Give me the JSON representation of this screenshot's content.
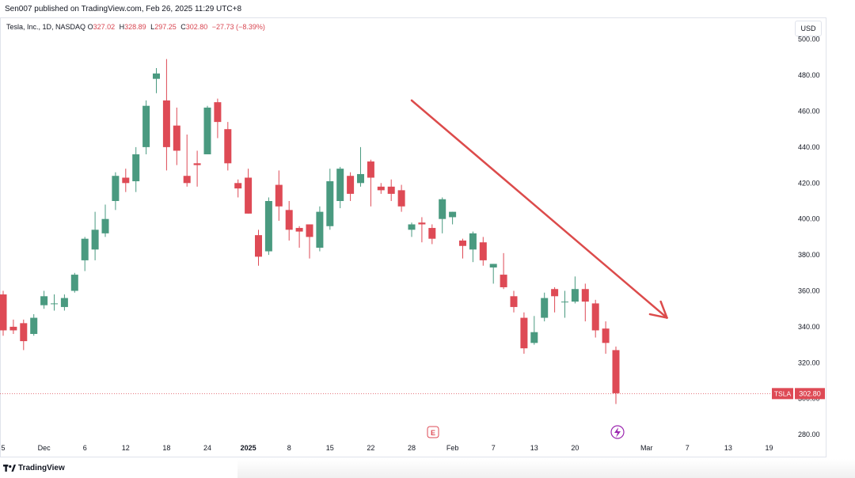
{
  "published_text": "Sen007 published on TradingView.com, Feb 26, 2025 11:29 UTC+8",
  "legend": {
    "symbol_text": "Tesla, Inc., 1D, NASDAQ",
    "open_label": "O",
    "open": "327.02",
    "high_label": "H",
    "high": "328.89",
    "low_label": "L",
    "low": "297.25",
    "close_label": "C",
    "close": "302.80",
    "change": "−27.73 (−8.39%)"
  },
  "currency": "USD",
  "price_tag": {
    "ticker": "TSLA",
    "price": "302.80",
    "value": 302.8
  },
  "footer_brand": "TradingView",
  "event_marker_e": "E",
  "colors": {
    "up": "#4a9a80",
    "down": "#de4a55",
    "arrow": "#dc4b4b",
    "axis_text": "#131722"
  },
  "chart_data": {
    "type": "candlestick",
    "title": "",
    "xlabel": "",
    "ylabel": "",
    "ylim": [
      270,
      505
    ],
    "yticks": [
      280,
      300,
      320,
      340,
      360,
      380,
      400,
      420,
      440,
      460,
      480,
      500
    ],
    "ytick_labels": [
      "280.00",
      "300.00",
      "320.00",
      "340.00",
      "360.00",
      "380.00",
      "400.00",
      "420.00",
      "440.00",
      "460.00",
      "480.00",
      "500.00"
    ],
    "grid": false,
    "xticks": [
      {
        "label": "5",
        "candle": 0
      },
      {
        "label": "Dec",
        "candle": 4
      },
      {
        "label": "6",
        "candle": 8
      },
      {
        "label": "12",
        "candle": 12
      },
      {
        "label": "18",
        "candle": 16
      },
      {
        "label": "24",
        "candle": 20
      },
      {
        "label": "2025",
        "candle": 24
      },
      {
        "label": "8",
        "candle": 28
      },
      {
        "label": "15",
        "candle": 32
      },
      {
        "label": "22",
        "candle": 36
      },
      {
        "label": "28",
        "candle": 40
      },
      {
        "label": "Feb",
        "candle": 44
      },
      {
        "label": "7",
        "candle": 48
      },
      {
        "label": "13",
        "candle": 52
      },
      {
        "label": "20",
        "candle": 56
      },
      {
        "label": "Mar",
        "candle": 63
      },
      {
        "label": "7",
        "candle": 67
      },
      {
        "label": "13",
        "candle": 71
      },
      {
        "label": "19",
        "candle": 75
      }
    ],
    "ohlc": [
      [
        358,
        360,
        335,
        338
      ],
      [
        340,
        344,
        336,
        338
      ],
      [
        342,
        344,
        327,
        332
      ],
      [
        336,
        347,
        335,
        345
      ],
      [
        352,
        360,
        350,
        357
      ],
      [
        353,
        358,
        349,
        353
      ],
      [
        351,
        358,
        349,
        356
      ],
      [
        360,
        370,
        359,
        369
      ],
      [
        377,
        390,
        371,
        389
      ],
      [
        383,
        404,
        377,
        394
      ],
      [
        392,
        408,
        390,
        400
      ],
      [
        410,
        426,
        405,
        424
      ],
      [
        423,
        428,
        415,
        420
      ],
      [
        421,
        440,
        415,
        436
      ],
      [
        440,
        466,
        436,
        463
      ],
      [
        478,
        484,
        470,
        481
      ],
      [
        466,
        489,
        427,
        440
      ],
      [
        452,
        462,
        430,
        438
      ],
      [
        424,
        447,
        418,
        420
      ],
      [
        431,
        438,
        418,
        430
      ],
      [
        436,
        463,
        436,
        462
      ],
      [
        465,
        467,
        445,
        454
      ],
      [
        450,
        454,
        427,
        431
      ],
      [
        420,
        422,
        412,
        417
      ],
      [
        423,
        428,
        403,
        403
      ],
      [
        391,
        394,
        374,
        379
      ],
      [
        382,
        412,
        380,
        410
      ],
      [
        419,
        427,
        399,
        407
      ],
      [
        405,
        410,
        388,
        394
      ],
      [
        395,
        396,
        384,
        393
      ],
      [
        397,
        397,
        378,
        390
      ],
      [
        384,
        407,
        382,
        404
      ],
      [
        396,
        428,
        394,
        421
      ],
      [
        410,
        429,
        406,
        428
      ],
      [
        424,
        426,
        410,
        414
      ],
      [
        420,
        440,
        418,
        425
      ],
      [
        432,
        433,
        407,
        423
      ],
      [
        418,
        420,
        414,
        416
      ],
      [
        418,
        422,
        410,
        414
      ],
      [
        416,
        419,
        404,
        407
      ],
      [
        394,
        398,
        390,
        397
      ],
      [
        398,
        401,
        387,
        397
      ],
      [
        395,
        397,
        386,
        389
      ],
      [
        400,
        412,
        392,
        411
      ],
      [
        401,
        404,
        397,
        404
      ],
      [
        388,
        389,
        378,
        385
      ],
      [
        383,
        393,
        376,
        392
      ],
      [
        387,
        390,
        374,
        377
      ],
      [
        373,
        375,
        364,
        375
      ],
      [
        369,
        381,
        361,
        362
      ],
      [
        357,
        360,
        348,
        351
      ],
      [
        345,
        348,
        325,
        328
      ],
      [
        331,
        346,
        330,
        337
      ],
      [
        345,
        359,
        343,
        356
      ],
      [
        361,
        362,
        348,
        357
      ],
      [
        354,
        360,
        345,
        354
      ],
      [
        354,
        368,
        353,
        361
      ],
      [
        361,
        364,
        343,
        354
      ],
      [
        353,
        355,
        334,
        338
      ],
      [
        339,
        343,
        325,
        331
      ],
      [
        327,
        329,
        297,
        303
      ]
    ],
    "annotations": [
      {
        "type": "arrow",
        "from": {
          "candle": 40,
          "price": 466
        },
        "to": {
          "candle": 65,
          "price": 345
        }
      }
    ],
    "last_price_line": 302.8
  }
}
